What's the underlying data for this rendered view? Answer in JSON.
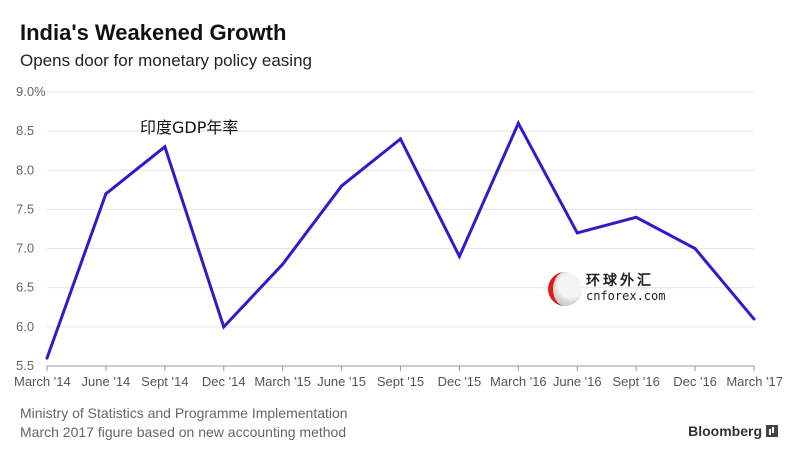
{
  "header": {
    "title": "India's Weakened Growth",
    "subtitle": "Opens door for monetary policy easing"
  },
  "footer": {
    "source": "Ministry of Statistics and Programme Implementation",
    "note": "March 2017 figure based on new accounting method",
    "brand": "Bloomberg"
  },
  "watermark": {
    "cn": "环球外汇",
    "en": "cnforex.com"
  },
  "chart_data": {
    "type": "line",
    "title": "India's Weakened Growth",
    "subtitle": "Opens door for monetary policy easing",
    "annotation": "印度GDP年率",
    "categories": [
      "March '14",
      "June '14",
      "Sept '14",
      "Dec '14",
      "March '15",
      "June '15",
      "Sept '15",
      "Dec '15",
      "March '16",
      "June '16",
      "Sept '16",
      "Dec '16",
      "March '17"
    ],
    "series": [
      {
        "values": [
          5.6,
          7.7,
          8.3,
          6.0,
          6.8,
          7.8,
          8.4,
          6.9,
          8.6,
          7.2,
          7.4,
          7.0,
          6.1
        ]
      }
    ],
    "ylim": [
      5.5,
      9.0
    ],
    "yticks": [
      "5.5",
      "6.0",
      "6.5",
      "7.0",
      "7.5",
      "8.0",
      "8.5",
      "9.0%"
    ],
    "ytick_values": [
      5.5,
      6.0,
      6.5,
      7.0,
      7.5,
      8.0,
      8.5,
      9.0
    ],
    "grid": true,
    "line_color": "#2e1ccb"
  }
}
